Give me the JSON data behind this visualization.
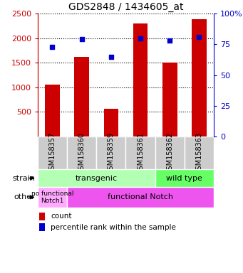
{
  "title": "GDS2848 / 1434605_at",
  "samples": [
    "GSM158357",
    "GSM158360",
    "GSM158359",
    "GSM158361",
    "GSM158362",
    "GSM158363"
  ],
  "counts": [
    1060,
    1620,
    560,
    2300,
    1500,
    2390
  ],
  "percentiles": [
    73,
    79,
    65,
    80,
    78,
    81
  ],
  "ylim_left": [
    0,
    2500
  ],
  "ylim_right": [
    0,
    100
  ],
  "yticks_left": [
    500,
    1000,
    1500,
    2000,
    2500
  ],
  "yticks_right": [
    0,
    25,
    50,
    75,
    100
  ],
  "bar_color": "#cc0000",
  "dot_color": "#0000cc",
  "bar_width": 0.5,
  "strain_transgenic_label": "transgenic",
  "strain_wildtype_label": "wild type",
  "other_nofunc_label": "no functional\nNotch1",
  "other_func_label": "functional Notch",
  "color_light_green": "#b3ffb3",
  "color_green": "#66ff66",
  "color_light_purple": "#ffaaff",
  "color_purple": "#ee55ee",
  "color_gray": "#cccccc",
  "left_axis_color": "#cc0000",
  "right_axis_color": "#0000cc",
  "legend_count_label": "count",
  "legend_pct_label": "percentile rank within the sample",
  "strain_label": "strain",
  "other_label": "other"
}
